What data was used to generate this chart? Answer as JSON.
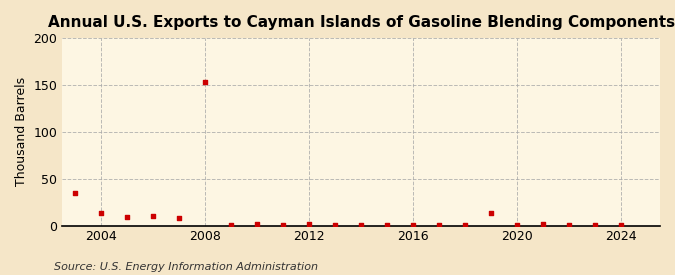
{
  "title": "Annual U.S. Exports to Cayman Islands of Gasoline Blending Components",
  "ylabel": "Thousand Barrels",
  "source_text": "Source: U.S. Energy Information Administration",
  "background_color": "#f5e6c8",
  "plot_background_color": "#fdf6e3",
  "marker_color": "#cc0000",
  "years": [
    2003,
    2004,
    2005,
    2006,
    2007,
    2008,
    2009,
    2010,
    2011,
    2012,
    2013,
    2014,
    2015,
    2016,
    2017,
    2018,
    2019,
    2020,
    2021,
    2022,
    2023,
    2024
  ],
  "values": [
    35,
    13,
    9,
    10,
    8,
    153,
    1,
    2,
    1,
    2,
    1,
    1,
    1,
    1,
    1,
    1,
    13,
    1,
    2,
    1,
    1,
    1
  ],
  "xlim": [
    2002.5,
    2025.5
  ],
  "ylim": [
    0,
    200
  ],
  "yticks": [
    0,
    50,
    100,
    150,
    200
  ],
  "xticks": [
    2004,
    2008,
    2012,
    2016,
    2020,
    2024
  ],
  "grid_color": "#aaaaaa",
  "title_fontsize": 11,
  "label_fontsize": 9,
  "tick_fontsize": 9,
  "source_fontsize": 8
}
